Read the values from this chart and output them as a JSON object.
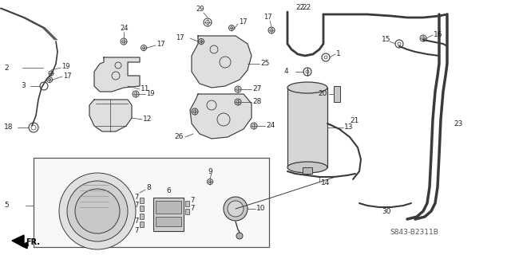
{
  "bg_color": "#ffffff",
  "diagram_code": "S843-B2311B",
  "line_color": "#3a3a3a",
  "text_color": "#222222",
  "lw_main": 1.0,
  "lw_thick": 2.0,
  "lw_thin": 0.6
}
